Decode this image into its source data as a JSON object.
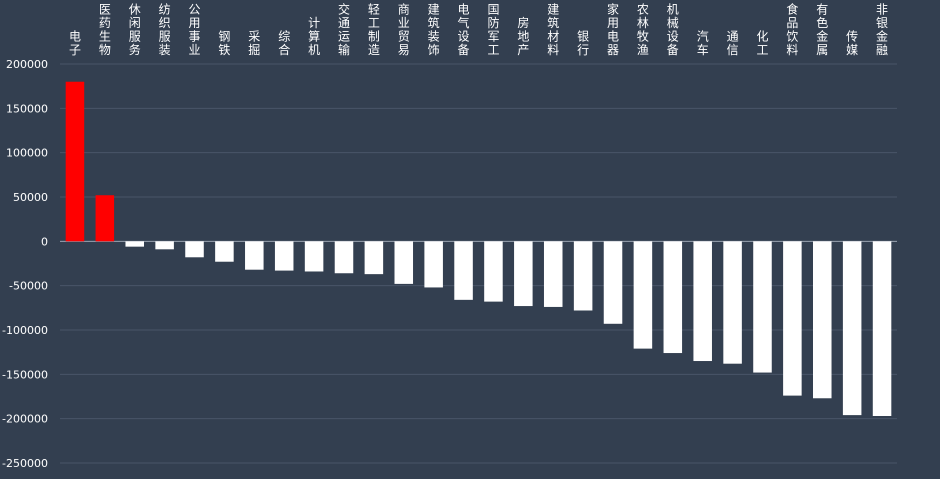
{
  "chart_data": {
    "type": "bar",
    "title": "",
    "xlabel": "",
    "ylabel": "",
    "ylim": [
      -250000,
      200000
    ],
    "yticks": [
      200000,
      150000,
      100000,
      50000,
      0,
      -50000,
      -100000,
      -150000,
      -200000,
      -250000
    ],
    "grid": true,
    "legend": "none",
    "categories": [
      "电子",
      "医药生物",
      "休闲服务",
      "纺织服装",
      "公用事业",
      "钢铁",
      "采掘",
      "综合",
      "计算机",
      "交通运输",
      "轻工制造",
      "商业贸易",
      "建筑装饰",
      "电气设备",
      "国防军工",
      "房地产",
      "建筑材料",
      "银行",
      "家用电器",
      "农林牧渔",
      "机械设备",
      "汽车",
      "通信",
      "化工",
      "食品饮料",
      "有色金属",
      "传媒",
      "非银金融"
    ],
    "values": [
      180000,
      52000,
      -6000,
      -9000,
      -18000,
      -23000,
      -32000,
      -33000,
      -34000,
      -36000,
      -37000,
      -48000,
      -52000,
      -66000,
      -68000,
      -73000,
      -74000,
      -78000,
      -93000,
      -121000,
      -126000,
      -135000,
      -138000,
      -148000,
      -174000,
      -177000,
      -196000,
      -197000
    ],
    "colors": {
      "positive": "#ff0000",
      "negative": "#ffffff",
      "background": "#333f50",
      "grid": "#4a5668",
      "text": "#ffffff"
    }
  }
}
